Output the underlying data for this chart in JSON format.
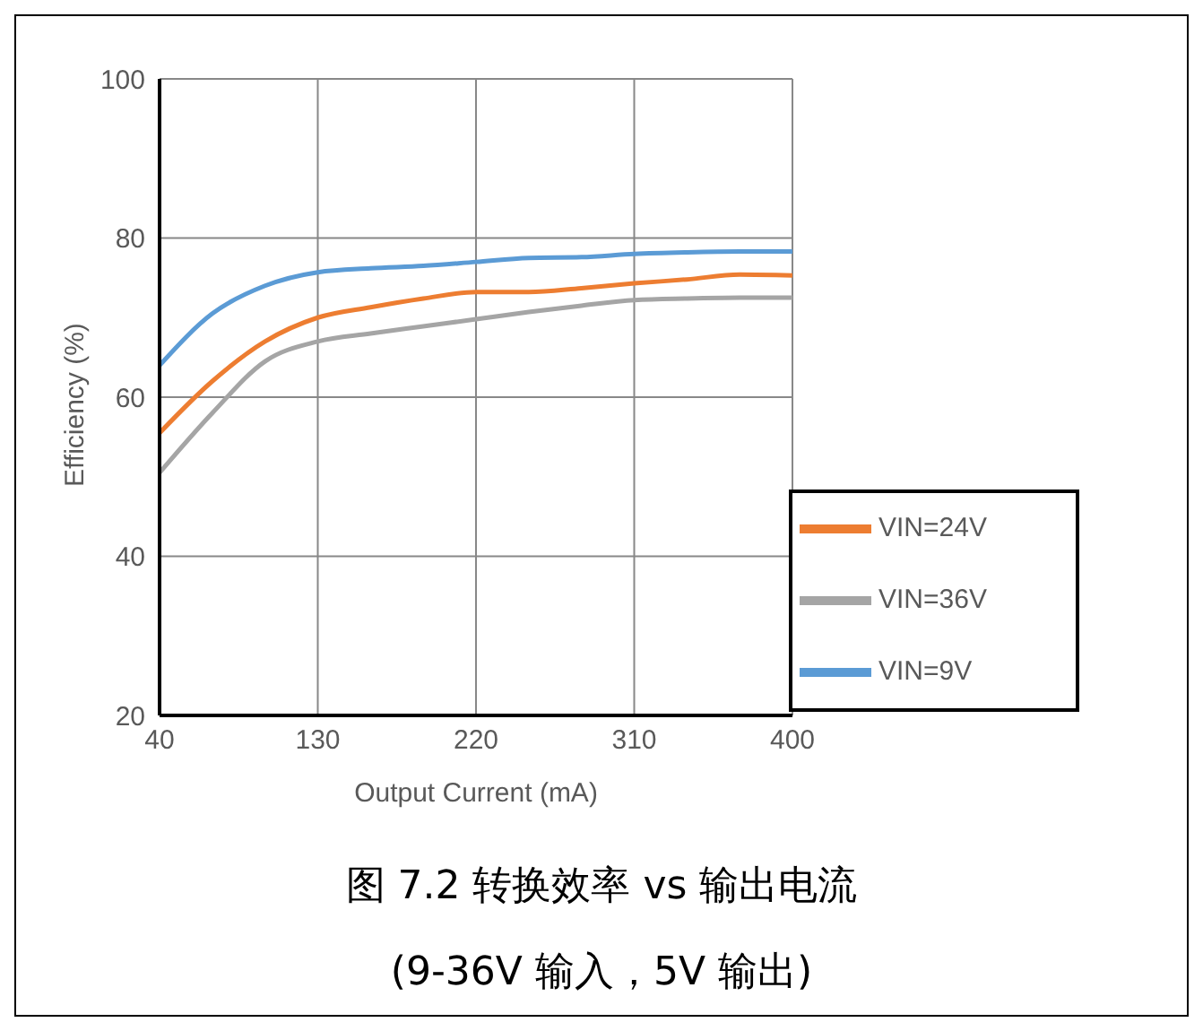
{
  "chart_data": {
    "type": "line",
    "title": "图 7.2 转换效率 vs 输出电流",
    "subtitle": "(9-36V 输入，5V 输出)",
    "xlabel": "Output Current (mA)",
    "ylabel": "Efficiency (%)",
    "x": [
      40,
      70,
      100,
      130,
      160,
      190,
      220,
      250,
      280,
      310,
      340,
      370,
      400
    ],
    "series": [
      {
        "name": "VIN=9V",
        "color": "#5b9bd5",
        "values": [
          64,
          70.5,
          74,
          75.7,
          76.2,
          76.5,
          77,
          77.5,
          77.6,
          78,
          78.2,
          78.3,
          78.3
        ]
      },
      {
        "name": "VIN=24V",
        "color": "#ed7d31",
        "values": [
          55.5,
          62,
          67,
          70,
          71.3,
          72.4,
          73.2,
          73.2,
          73.7,
          74.3,
          74.8,
          75.4,
          75.3
        ]
      },
      {
        "name": "VIN=36V",
        "color": "#a5a5a5",
        "values": [
          50.5,
          58,
          64.5,
          67,
          68,
          68.9,
          69.8,
          70.7,
          71.5,
          72.2,
          72.4,
          72.5,
          72.5
        ]
      }
    ],
    "xlim": [
      40,
      400
    ],
    "xticks": [
      40,
      130,
      220,
      310,
      400
    ],
    "ylim": [
      20,
      100
    ],
    "yticks": [
      20,
      40,
      60,
      80,
      100
    ],
    "grid": true,
    "legend": "bottom right",
    "marker": "none",
    "line_style": "solid"
  }
}
